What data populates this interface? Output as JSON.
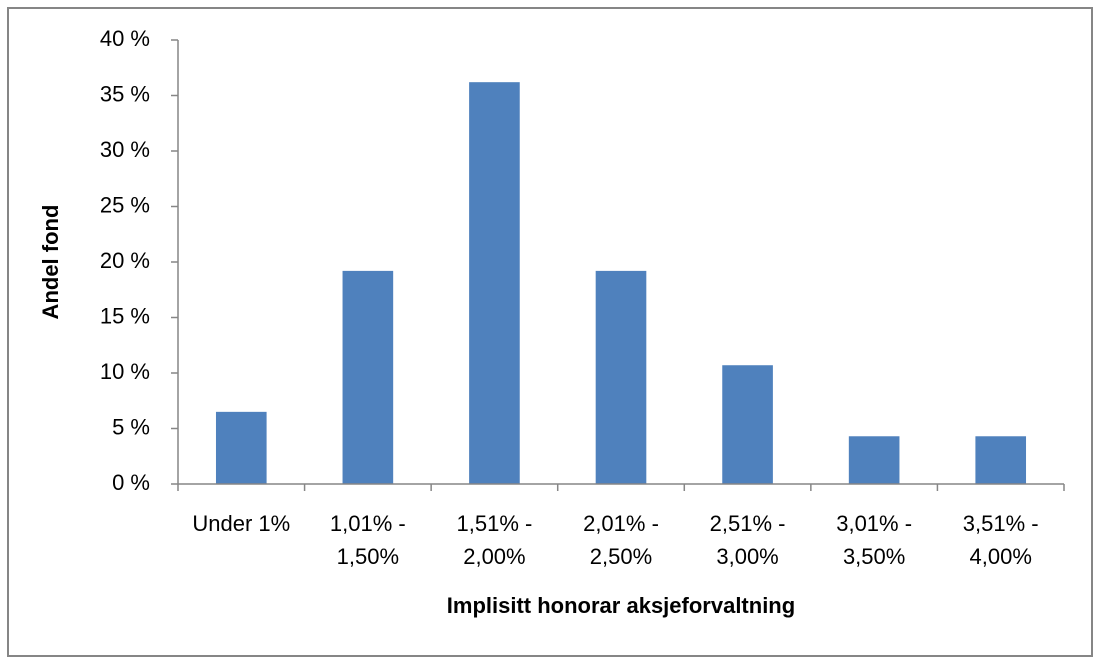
{
  "chart_data": {
    "type": "bar",
    "x_label": "Implisitt honorar aksjeforvaltning",
    "y_label": "Andel fond",
    "categories": [
      "Under 1%",
      "1,01% - 1,50%",
      "1,51% - 2,00%",
      "2,01% - 2,50%",
      "2,51% - 3,00%",
      "3,01% - 3,50%",
      "3,51% - 4,00%"
    ],
    "values": [
      6.5,
      19.2,
      36.2,
      19.2,
      10.7,
      4.3,
      4.3
    ],
    "color": "#4f81bd",
    "ylim": [
      0,
      40
    ],
    "yticks": [
      {
        "value": 0,
        "label": "0 %"
      },
      {
        "value": 5,
        "label": "5 %"
      },
      {
        "value": 10,
        "label": "10 %"
      },
      {
        "value": 15,
        "label": "15 %"
      },
      {
        "value": 20,
        "label": "20 %"
      },
      {
        "value": 25,
        "label": "25 %"
      },
      {
        "value": 30,
        "label": "30 %"
      },
      {
        "value": 35,
        "label": "35 %"
      },
      {
        "value": 40,
        "label": "40 %"
      }
    ],
    "grid": false
  }
}
